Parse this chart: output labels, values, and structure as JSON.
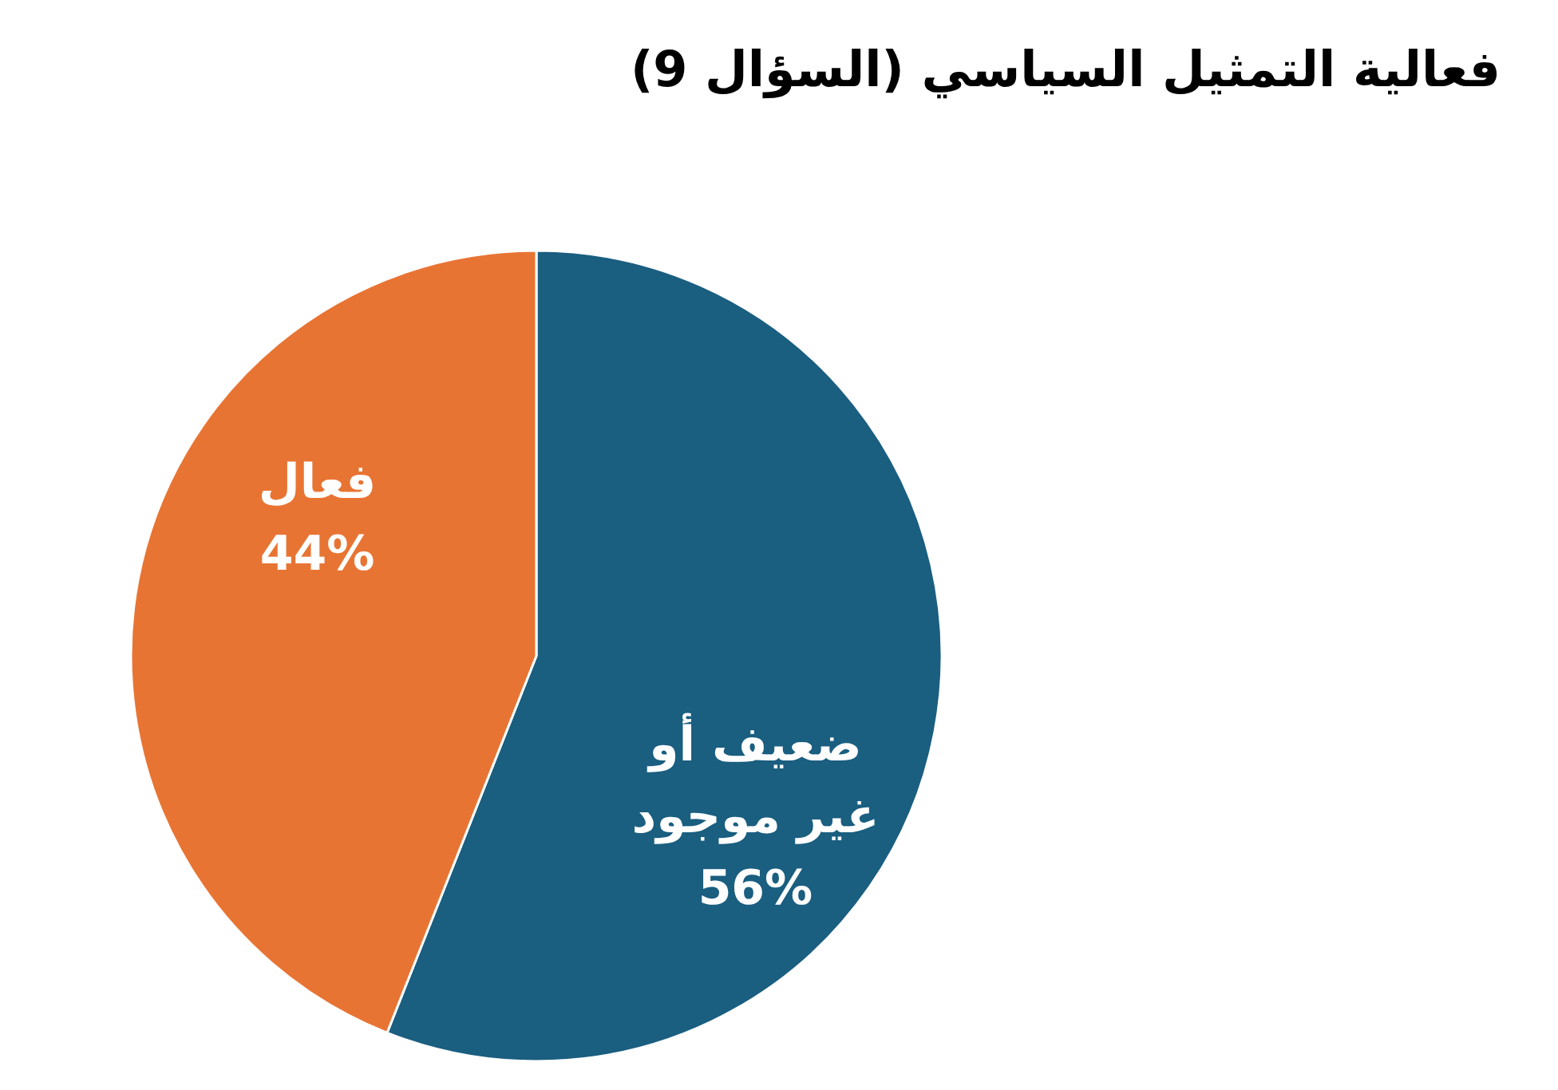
{
  "chart_data": {
    "type": "pie",
    "title": "فعالية التمثيل السياسي (السؤال 9)",
    "categories": [
      "ضعيف أو غير موجود",
      "فعال"
    ],
    "values": [
      56,
      44
    ],
    "colors": [
      "#1a5e80",
      "#e87433"
    ],
    "value_labels": [
      "56%",
      "44%"
    ]
  }
}
